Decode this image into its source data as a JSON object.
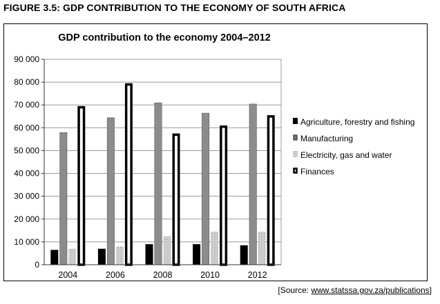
{
  "figure_heading": "FIGURE 3.5:  GDP CONTRIBUTION TO THE ECONOMY OF SOUTH AFRICA",
  "source": {
    "prefix": "[Source: ",
    "link": "www.statssa.gov.za/publications",
    "suffix": "]"
  },
  "chart_data": {
    "type": "bar",
    "title": "GDP contribution to the economy 2004–2012",
    "xlabel": "",
    "ylabel": "",
    "categories": [
      "2004",
      "2006",
      "2008",
      "2010",
      "2012"
    ],
    "ylim": [
      0,
      90000
    ],
    "yticks": [
      0,
      10000,
      20000,
      30000,
      40000,
      50000,
      60000,
      70000,
      80000,
      90000
    ],
    "ytick_labels": [
      "0",
      "10 000",
      "20 000",
      "30 000",
      "40 000",
      "50 000",
      "60 000",
      "70 000",
      "80 000",
      "90 000"
    ],
    "grid": true,
    "legend_position": "right",
    "series": [
      {
        "name": "Agriculture, forestry and fishing",
        "values": [
          6500,
          7000,
          9000,
          9000,
          8500
        ],
        "color": "#000000",
        "style": "solid-black"
      },
      {
        "name": "Manufacturing",
        "values": [
          58000,
          64500,
          71000,
          66500,
          70500
        ],
        "color": "#8c8c8c",
        "style": "solid-grey"
      },
      {
        "name": "Electricity, gas and water",
        "values": [
          7000,
          8000,
          12500,
          14500,
          14500
        ],
        "color": "#c8c8c8",
        "style": "speckled"
      },
      {
        "name": "Finances",
        "values": [
          69500,
          79500,
          57500,
          61000,
          65500
        ],
        "color": "#ffffff",
        "style": "outlined"
      }
    ]
  }
}
